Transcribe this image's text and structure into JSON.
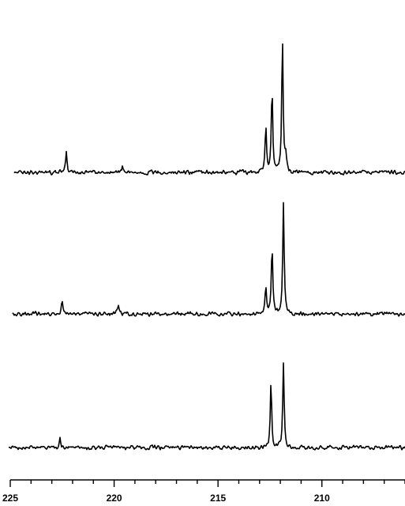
{
  "chart_data": {
    "type": "line",
    "title": "",
    "xlabel": "",
    "ylabel": "",
    "x_reversed": true,
    "xlim": [
      225,
      206
    ],
    "x_ticks_major": [
      225,
      220,
      215,
      210
    ],
    "x_tick_labels": [
      "225",
      "220",
      "215",
      "210"
    ],
    "x_tick_minor_step": 1,
    "grid": false,
    "line_color": "#000000",
    "series": [
      {
        "stack_order": 1,
        "peaks": [
          {
            "x": 222.3,
            "height": 0.24
          },
          {
            "x": 219.6,
            "height": 0.1
          },
          {
            "x": 212.7,
            "height": 0.56
          },
          {
            "x": 212.4,
            "height": 1.0
          },
          {
            "x": 211.9,
            "height": 1.62
          },
          {
            "x": 211.75,
            "height": 0.2
          }
        ]
      },
      {
        "stack_order": 2,
        "peaks": [
          {
            "x": 222.5,
            "height": 0.16
          },
          {
            "x": 219.8,
            "height": 0.1
          },
          {
            "x": 212.7,
            "height": 0.33
          },
          {
            "x": 212.4,
            "height": 0.81
          },
          {
            "x": 211.85,
            "height": 1.36
          }
        ]
      },
      {
        "stack_order": 3,
        "peaks": [
          {
            "x": 222.6,
            "height": 0.13
          },
          {
            "x": 212.45,
            "height": 0.8
          },
          {
            "x": 211.85,
            "height": 1.03
          }
        ]
      }
    ]
  }
}
